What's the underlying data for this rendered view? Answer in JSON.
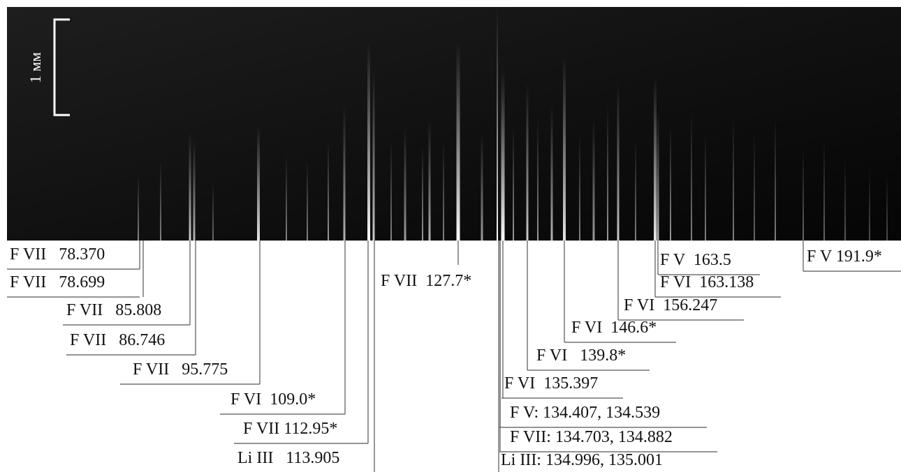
{
  "scale_label": "1 мм",
  "labels": [
    {
      "text": "F VII   78.370"
    },
    {
      "text": "F VII   78.699"
    },
    {
      "text": "F VII   85.808"
    },
    {
      "text": "F VII   86.746"
    },
    {
      "text": "F VII   95.775"
    },
    {
      "text": "F VI  109.0*"
    },
    {
      "text": "F VII 112.95*"
    },
    {
      "text": "Li III   113.905"
    },
    {
      "text": "F VII  127.7*"
    },
    {
      "text": "F VI  135.397"
    },
    {
      "text": "F V: 134.407, 134.539"
    },
    {
      "text": "F VII: 134.703, 134.882"
    },
    {
      "text": "Li III: 134.996, 135.001"
    },
    {
      "text": "F VI   139.8*"
    },
    {
      "text": "F VI  146.6*"
    },
    {
      "text": "F VI  156.247"
    },
    {
      "text": "F VI  163.138"
    },
    {
      "text": "F V  163.5"
    },
    {
      "text": "F V 191.9*"
    }
  ]
}
